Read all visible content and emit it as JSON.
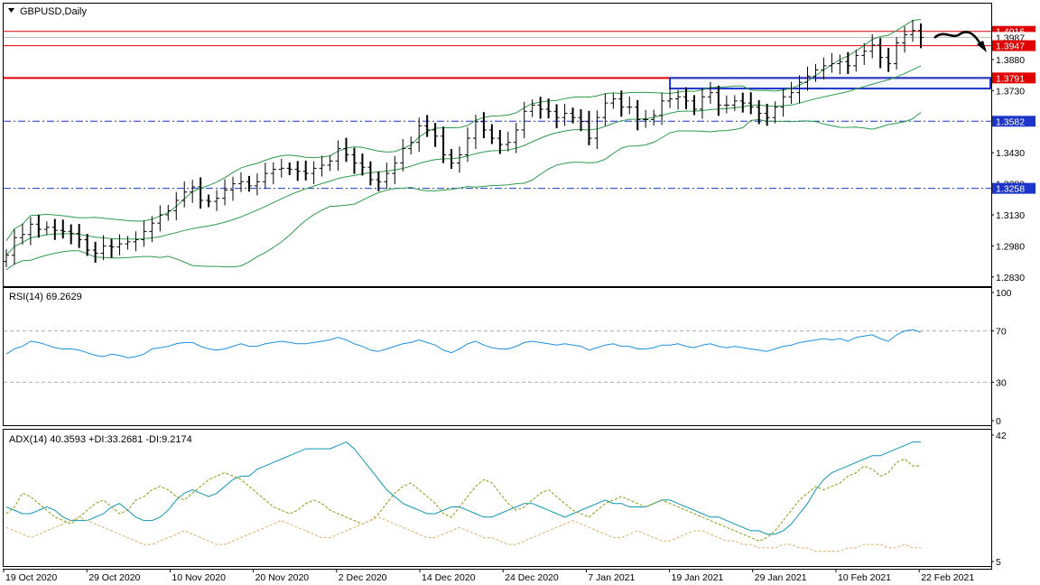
{
  "window": {
    "symbol_label": "GBPUSD,Daily"
  },
  "colors": {
    "candles": "#000000",
    "bollinger": "#2e9a4b",
    "resistance": "#e00000",
    "support_box": "#1d35c9",
    "dashdot": "#1d35c9",
    "rsi": "#1e8fe0",
    "adx": "#0f96b3",
    "plus_di": "#8a9a10",
    "minus_di": "#d9b26a",
    "level_dash": "#b0b0b0"
  },
  "chart_data": [
    {
      "type": "candlestick",
      "title": "GBPUSD,Daily",
      "y_ticks": [
        "1.3730",
        "1.3580",
        "1.3430",
        "1.3280",
        "1.3130",
        "1.2980",
        "1.2830",
        "1.3880"
      ],
      "ylim": [
        1.279,
        1.415
      ],
      "x_tick_labels": [
        "19 Oct 2020",
        "29 Oct 2020",
        "10 Nov 2020",
        "20 Nov 2020",
        "2 Dec 2020",
        "14 Dec 2020",
        "24 Dec 2020",
        "7 Jan 2021",
        "19 Jan 2021",
        "29 Jan 2021",
        "10 Feb 2021",
        "22 Feb 2021"
      ],
      "price_levels": [
        {
          "label": "1.4016",
          "value": 1.4016,
          "style": "resistance-filled"
        },
        {
          "label": "1.3987",
          "value": 1.3987,
          "style": "current"
        },
        {
          "label": "1.3947",
          "value": 1.3947,
          "style": "resistance-filled"
        },
        {
          "label": "1.3791",
          "value": 1.3791,
          "style": "resistance-filled-thick"
        },
        {
          "label": "1.3582",
          "value": 1.3582,
          "style": "support-dashdot"
        },
        {
          "label": "1.3258",
          "value": 1.3258,
          "style": "support-dashdot"
        }
      ],
      "support_zone": {
        "from_date_index": 82,
        "to_date_index": 110,
        "top": 1.3791,
        "bottom": 1.374
      },
      "close": [
        1.2935,
        1.302,
        1.3035,
        1.3085,
        1.306,
        1.307,
        1.3055,
        1.305,
        1.304,
        1.301,
        1.296,
        1.2945,
        1.298,
        1.2975,
        1.299,
        1.3,
        1.301,
        1.305,
        1.309,
        1.313,
        1.315,
        1.32,
        1.324,
        1.3265,
        1.32,
        1.3195,
        1.321,
        1.325,
        1.328,
        1.329,
        1.327,
        1.329,
        1.333,
        1.335,
        1.3355,
        1.335,
        1.334,
        1.333,
        1.3355,
        1.337,
        1.339,
        1.345,
        1.342,
        1.338,
        1.336,
        1.33,
        1.329,
        1.333,
        1.338,
        1.345,
        1.348,
        1.356,
        1.354,
        1.351,
        1.342,
        1.338,
        1.342,
        1.35,
        1.358,
        1.354,
        1.35,
        1.347,
        1.348,
        1.354,
        1.363,
        1.366,
        1.364,
        1.363,
        1.36,
        1.362,
        1.36,
        1.358,
        1.35,
        1.36,
        1.367,
        1.369,
        1.365,
        1.365,
        1.359,
        1.359,
        1.361,
        1.368,
        1.369,
        1.37,
        1.368,
        1.364,
        1.37,
        1.372,
        1.366,
        1.366,
        1.368,
        1.367,
        1.365,
        1.362,
        1.36,
        1.365,
        1.37,
        1.372,
        1.377,
        1.38,
        1.383,
        1.385,
        1.386,
        1.387,
        1.385,
        1.39,
        1.392,
        1.395,
        1.389,
        1.386,
        1.396,
        1.4,
        1.402,
        1.3987
      ],
      "bollinger": {
        "upper_range": [
          1.305,
          1.401
        ],
        "middle_range": [
          1.293,
          1.379
        ],
        "lower_range": [
          1.283,
          1.356
        ]
      }
    },
    {
      "type": "line",
      "title": "RSI(14) 69.2629",
      "name": "RSI(14)",
      "y_ticks": [
        "100",
        "70",
        "30",
        "0"
      ],
      "ylim": [
        0,
        100
      ],
      "levels": [
        70,
        30
      ],
      "values": [
        52,
        56,
        58,
        62,
        61,
        59,
        57,
        56,
        56,
        55,
        53,
        51,
        50,
        52,
        51,
        49,
        50,
        52,
        56,
        57,
        58,
        60,
        61,
        61,
        58,
        56,
        55,
        56,
        58,
        60,
        58,
        58,
        60,
        61,
        62,
        61,
        60,
        60,
        61,
        62,
        63,
        65,
        63,
        60,
        58,
        55,
        54,
        56,
        58,
        60,
        61,
        63,
        61,
        59,
        55,
        53,
        56,
        60,
        62,
        59,
        57,
        56,
        56,
        58,
        61,
        62,
        61,
        60,
        59,
        60,
        59,
        58,
        55,
        57,
        59,
        60,
        58,
        58,
        56,
        56,
        57,
        59,
        59,
        60,
        58,
        57,
        59,
        60,
        58,
        57,
        58,
        57,
        56,
        55,
        54,
        56,
        58,
        59,
        61,
        62,
        63,
        64,
        63,
        64,
        62,
        65,
        66,
        67,
        64,
        62,
        67,
        70,
        71,
        69
      ]
    },
    {
      "type": "line",
      "title": "ADX(14) 40.3593 +DI:33.2681 -DI:9.2174",
      "y_ticks": [
        "42",
        "5"
      ],
      "ylim": [
        5,
        42
      ],
      "series": [
        {
          "name": "ADX(14)",
          "values": [
            21,
            20,
            19,
            19,
            20,
            21,
            20,
            18,
            17,
            17,
            17,
            18,
            19,
            21,
            22,
            20,
            18,
            17,
            17,
            18,
            20,
            23,
            25,
            26,
            25,
            24,
            25,
            27,
            29,
            30,
            30,
            32,
            33,
            34,
            35,
            36,
            37,
            38,
            38,
            38,
            38,
            39,
            40,
            38,
            35,
            32,
            29,
            26,
            24,
            22,
            21,
            20,
            19,
            19,
            20,
            21,
            21,
            20,
            19,
            18,
            18,
            19,
            20,
            21,
            22,
            22,
            21,
            20,
            19,
            18,
            19,
            20,
            21,
            22,
            23,
            22,
            22,
            21,
            21,
            21,
            22,
            23,
            23,
            22,
            21,
            20,
            19,
            18,
            18,
            17,
            16,
            15,
            14,
            14,
            13,
            13,
            14,
            16,
            19,
            22,
            26,
            29,
            31,
            32,
            33,
            34,
            35,
            36,
            36,
            37,
            38,
            39,
            40,
            40
          ]
        },
        {
          "name": "+DI",
          "values": [
            19,
            21,
            25,
            24,
            22,
            20,
            18,
            17,
            16,
            18,
            20,
            22,
            23,
            21,
            19,
            20,
            23,
            24,
            26,
            27,
            26,
            24,
            23,
            25,
            27,
            29,
            30,
            31,
            30,
            29,
            27,
            25,
            23,
            21,
            20,
            19,
            20,
            22,
            23,
            22,
            20,
            19,
            18,
            17,
            16,
            17,
            19,
            22,
            25,
            27,
            28,
            26,
            24,
            22,
            19,
            18,
            21,
            24,
            27,
            29,
            28,
            25,
            22,
            20,
            21,
            23,
            25,
            26,
            24,
            22,
            20,
            19,
            18,
            20,
            22,
            23,
            24,
            23,
            22,
            21,
            22,
            23,
            22,
            21,
            20,
            19,
            18,
            17,
            16,
            15,
            14,
            13,
            12,
            11,
            12,
            14,
            17,
            20,
            23,
            25,
            27,
            26,
            27,
            28,
            30,
            31,
            33,
            32,
            30,
            31,
            34,
            35,
            33,
            33
          ]
        },
        {
          "name": "-DI",
          "values": [
            15,
            14,
            13,
            12,
            13,
            14,
            15,
            16,
            17,
            18,
            17,
            16,
            15,
            14,
            13,
            12,
            11,
            10,
            10,
            11,
            12,
            13,
            14,
            13,
            12,
            11,
            10,
            10,
            11,
            12,
            13,
            14,
            15,
            16,
            17,
            16,
            15,
            14,
            13,
            12,
            12,
            13,
            14,
            15,
            16,
            17,
            18,
            17,
            16,
            15,
            14,
            13,
            12,
            12,
            13,
            14,
            15,
            14,
            13,
            12,
            12,
            11,
            10,
            10,
            11,
            12,
            13,
            14,
            15,
            16,
            17,
            16,
            15,
            14,
            13,
            12,
            12,
            13,
            14,
            13,
            12,
            11,
            11,
            12,
            13,
            14,
            14,
            13,
            12,
            11,
            11,
            10,
            10,
            9,
            9,
            9,
            10,
            10,
            9,
            9,
            8,
            8,
            8,
            8,
            9,
            9,
            10,
            10,
            10,
            9,
            9,
            10,
            9,
            9
          ]
        }
      ]
    }
  ]
}
